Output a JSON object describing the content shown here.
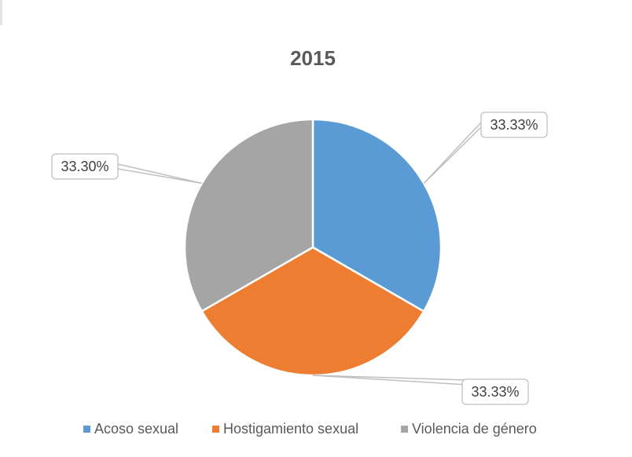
{
  "chart_data": {
    "type": "pie",
    "title": "2015",
    "categories": [
      "Acoso sexual",
      "Hostigamiento sexual",
      "Violencia de género"
    ],
    "values": [
      33.33,
      33.33,
      33.3
    ],
    "labels": [
      "33.33%",
      "33.33%",
      "33.30%"
    ],
    "colors": [
      "#5B9BD5",
      "#ED7D31",
      "#A5A5A5"
    ],
    "legend_position": "bottom",
    "start_angle_deg": 0,
    "direction": "clockwise"
  }
}
